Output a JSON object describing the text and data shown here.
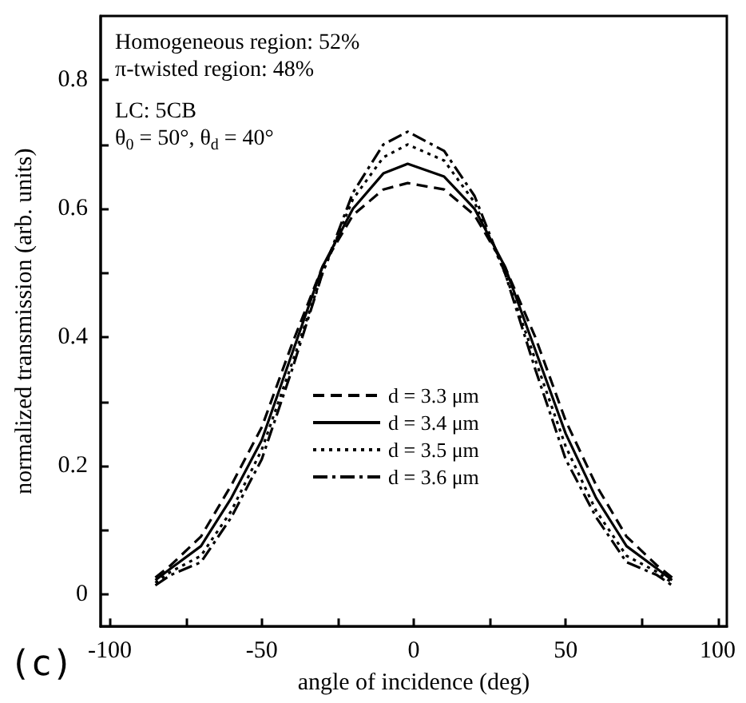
{
  "chart_data": {
    "type": "line",
    "xlabel": "angle of incidence (deg)",
    "ylabel": "normalized transmission (arb. units)",
    "xlim": [
      -103,
      103
    ],
    "xticks": [
      -100,
      {
        "value": -75,
        "label": null
      },
      -50,
      {
        "value": -25,
        "label": null
      },
      0,
      {
        "value": 25,
        "label": null
      },
      50,
      {
        "value": 75,
        "label": null
      },
      100
    ],
    "ylim": [
      -0.05,
      0.9
    ],
    "yticks": [
      0,
      {
        "value": 0.1,
        "label": null
      },
      0.2,
      {
        "value": 0.3,
        "label": null
      },
      0.4,
      {
        "value": 0.5,
        "label": null
      },
      0.6,
      {
        "value": 0.7,
        "label": null
      },
      0.8
    ],
    "x": [
      -85,
      -80,
      -70,
      -60,
      -50,
      -40,
      -30,
      -20,
      -10,
      -2,
      10,
      20,
      30,
      40,
      50,
      60,
      70,
      80,
      85
    ],
    "series": [
      {
        "name": "d = 3.3 μm",
        "color": "#000000",
        "line_style": "dashed",
        "values": [
          0.026,
          0.045,
          0.09,
          0.17,
          0.26,
          0.39,
          0.51,
          0.59,
          0.63,
          0.64,
          0.63,
          0.59,
          0.51,
          0.4,
          0.27,
          0.17,
          0.09,
          0.045,
          0.026
        ]
      },
      {
        "name": "d = 3.4 μm",
        "color": "#000000",
        "line_style": "solid",
        "values": [
          0.022,
          0.04,
          0.075,
          0.15,
          0.24,
          0.375,
          0.51,
          0.6,
          0.655,
          0.67,
          0.65,
          0.6,
          0.51,
          0.38,
          0.25,
          0.15,
          0.075,
          0.04,
          0.022
        ]
      },
      {
        "name": "d = 3.5 μm",
        "color": "#000000",
        "line_style": "dotted",
        "values": [
          0.018,
          0.035,
          0.06,
          0.13,
          0.225,
          0.36,
          0.5,
          0.615,
          0.68,
          0.7,
          0.675,
          0.61,
          0.5,
          0.365,
          0.23,
          0.13,
          0.06,
          0.035,
          0.018
        ]
      },
      {
        "name": "d = 3.6 μm",
        "color": "#000000",
        "line_style": "dashdot",
        "values": [
          0.014,
          0.03,
          0.05,
          0.12,
          0.21,
          0.35,
          0.5,
          0.625,
          0.7,
          0.72,
          0.69,
          0.62,
          0.5,
          0.35,
          0.21,
          0.12,
          0.05,
          0.03,
          0.014
        ]
      }
    ],
    "marker": "none",
    "grid": false,
    "legend": "bottom right",
    "annotations": [
      "Homogeneous region: 52%",
      "π-twisted region: 48%",
      "LC: 5CB",
      "θ$_{0}$ = 50°, θ$_{d}$ = 40°",
      "(c)"
    ]
  }
}
